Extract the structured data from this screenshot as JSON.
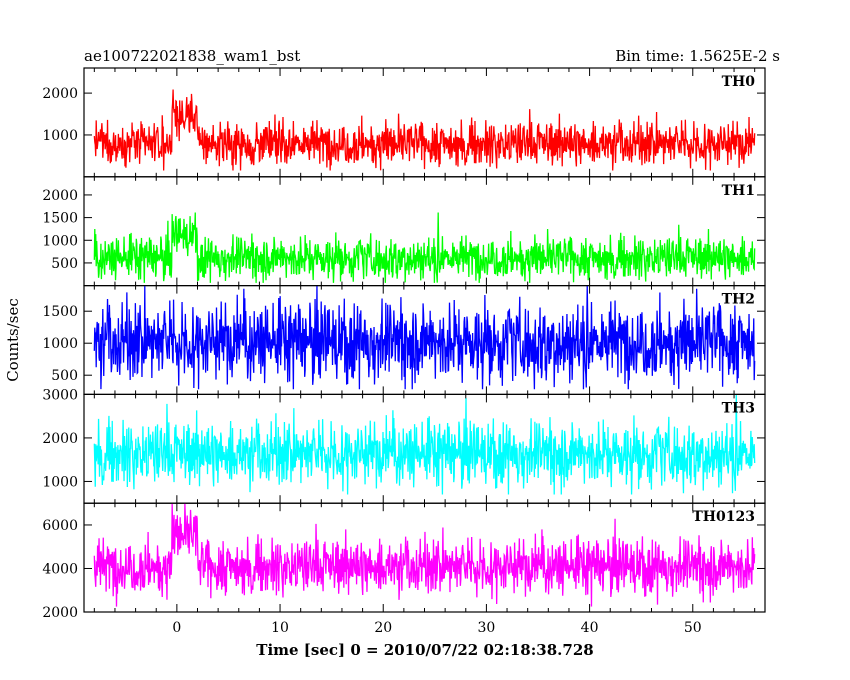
{
  "header": {
    "title": "ae100722021838_wam1_bst",
    "bin_time": "Bin time: 1.5625E-2 s"
  },
  "axes": {
    "ylabel": "Counts/sec",
    "xlabel": "Time [sec] 0 = 2010/07/22 02:18:38.728"
  },
  "chart_data": {
    "type": "line",
    "title": "ae100722021838_wam1_bst",
    "xlabel": "Time [sec] 0 = 2010/07/22 02:18:38.728",
    "ylabel": "Counts/sec",
    "xlim": [
      -9,
      57
    ],
    "x_ticks": [
      0,
      10,
      20,
      30,
      40,
      50
    ],
    "x_tick_labels": [
      "0",
      "10",
      "20",
      "30",
      "40",
      "50"
    ],
    "data_x_range": [
      -8,
      56
    ],
    "bin_time": "1.5625E-2 s",
    "panels": [
      {
        "name": "TH0",
        "color": "#ff0000",
        "ylim": [
          0,
          2600
        ],
        "y_ticks": [
          1000,
          2000
        ],
        "y_tick_labels": [
          "1000",
          "2000"
        ],
        "baseline": 800,
        "spread": 260,
        "floor": 150,
        "ceil": 2600,
        "burst": {
          "t": [
            -0.5,
            2.0
          ],
          "level": 1500
        }
      },
      {
        "name": "TH1",
        "color": "#00ff00",
        "ylim": [
          0,
          2400
        ],
        "y_ticks": [
          500,
          1000,
          1500,
          2000
        ],
        "y_tick_labels": [
          "500",
          "1000",
          "1500",
          "2000"
        ],
        "baseline": 620,
        "spread": 230,
        "floor": 60,
        "ceil": 2400,
        "burst": {
          "t": [
            -0.5,
            2.0
          ],
          "level": 1100
        }
      },
      {
        "name": "TH2",
        "color": "#0000ff",
        "ylim": [
          200,
          1900
        ],
        "y_ticks": [
          500,
          1000,
          1500
        ],
        "y_tick_labels": [
          "500",
          "1000",
          "1500"
        ],
        "baseline": 1030,
        "spread": 300,
        "floor": 280,
        "ceil": 1900,
        "burst": null
      },
      {
        "name": "TH3",
        "color": "#00ffff",
        "ylim": [
          500,
          3000
        ],
        "y_ticks": [
          1000,
          2000,
          3000
        ],
        "y_tick_labels": [
          "1000",
          "2000",
          "3000"
        ],
        "baseline": 1650,
        "spread": 360,
        "floor": 700,
        "ceil": 3000,
        "burst": null
      },
      {
        "name": "TH0123",
        "color": "#ff00ff",
        "ylim": [
          2000,
          7000
        ],
        "y_ticks": [
          2000,
          4000,
          6000
        ],
        "y_tick_labels": [
          "2000",
          "4000",
          "6000"
        ],
        "baseline": 4100,
        "spread": 620,
        "floor": 2250,
        "ceil": 7000,
        "burst": {
          "t": [
            -0.5,
            2.0
          ],
          "level": 5600
        }
      }
    ]
  }
}
